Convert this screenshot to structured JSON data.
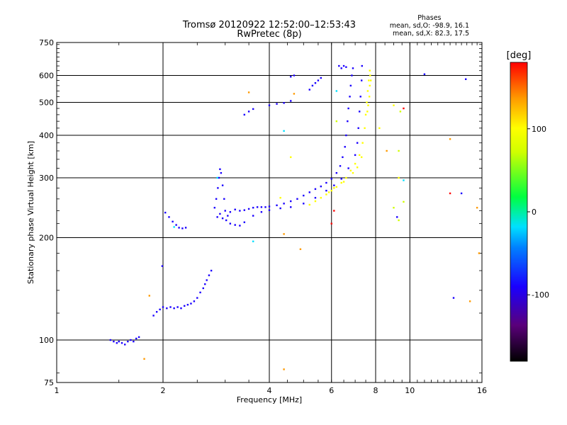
{
  "header": {
    "title_line1": "Tromsø 20120922 12:52:00–12:53:43",
    "title_line2": "RwPretec (8p)"
  },
  "phase_info": {
    "heading": "Phases",
    "line1": "mean, sd,O: -98.9, 16.1",
    "line2": "mean, sd,X: 82.3, 17.5"
  },
  "chart_data": {
    "type": "scatter",
    "title": "Tromsø 20120922 12:52:00–12:53:43",
    "subtitle": "RwPretec (8p)",
    "xlabel": "Frequency [MHz]",
    "ylabel": "Stationary phase Virtual Height [km]",
    "x_scale": "log",
    "y_scale": "log",
    "xlim": [
      1,
      16
    ],
    "ylim": [
      75,
      750
    ],
    "x_ticks": [
      1,
      2,
      4,
      6,
      8,
      10,
      16
    ],
    "y_ticks": [
      75,
      100,
      200,
      300,
      400,
      500,
      600,
      750
    ],
    "grid": true,
    "colorbar": {
      "label": "[deg]",
      "range": [
        -180,
        180
      ],
      "ticks": [
        100,
        0,
        -100
      ]
    },
    "series": [
      {
        "points": [
          [
            1.42,
            100
          ],
          [
            1.45,
            99
          ],
          [
            1.48,
            98
          ],
          [
            1.5,
            99
          ],
          [
            1.53,
            98
          ],
          [
            1.56,
            97
          ],
          [
            1.59,
            99
          ],
          [
            1.62,
            100
          ],
          [
            1.65,
            99
          ],
          [
            1.68,
            101
          ],
          [
            1.71,
            102
          ],
          [
            1.88,
            118
          ],
          [
            1.92,
            121
          ],
          [
            1.96,
            123
          ],
          [
            1.99,
            165
          ],
          [
            2.0,
            125
          ],
          [
            2.05,
            124
          ],
          [
            2.1,
            125
          ],
          [
            2.15,
            124
          ],
          [
            2.2,
            125
          ],
          [
            2.25,
            124
          ],
          [
            2.3,
            126
          ],
          [
            2.35,
            127
          ],
          [
            2.4,
            128
          ],
          [
            2.45,
            130
          ],
          [
            2.5,
            133
          ],
          [
            2.55,
            138
          ],
          [
            2.6,
            142
          ],
          [
            2.63,
            146
          ],
          [
            2.66,
            150
          ],
          [
            2.7,
            155
          ],
          [
            2.74,
            160
          ],
          [
            2.03,
            237
          ],
          [
            2.08,
            230
          ],
          [
            2.13,
            223
          ],
          [
            2.18,
            218
          ],
          [
            2.22,
            214
          ],
          [
            2.27,
            213
          ],
          [
            2.32,
            214
          ],
          [
            2.8,
            245
          ],
          [
            2.83,
            260
          ],
          [
            2.86,
            280
          ],
          [
            2.88,
            300
          ],
          [
            2.9,
            318
          ],
          [
            2.92,
            310
          ],
          [
            2.95,
            285
          ],
          [
            2.98,
            260
          ],
          [
            3.0,
            240
          ],
          [
            3.02,
            225
          ],
          [
            2.85,
            230
          ],
          [
            2.9,
            235
          ],
          [
            2.95,
            228
          ],
          [
            3.05,
            232
          ],
          [
            3.1,
            238
          ],
          [
            3.2,
            242
          ],
          [
            3.3,
            240
          ],
          [
            3.4,
            241
          ],
          [
            3.5,
            243
          ],
          [
            3.6,
            245
          ],
          [
            3.7,
            246
          ],
          [
            3.8,
            246
          ],
          [
            3.9,
            246
          ],
          [
            4.0,
            247
          ],
          [
            4.2,
            249
          ],
          [
            4.4,
            252
          ],
          [
            4.6,
            256
          ],
          [
            4.8,
            260
          ],
          [
            5.0,
            266
          ],
          [
            5.2,
            272
          ],
          [
            5.4,
            278
          ],
          [
            5.6,
            283
          ],
          [
            5.8,
            290
          ],
          [
            6.0,
            298
          ],
          [
            6.2,
            310
          ],
          [
            6.35,
            325
          ],
          [
            6.45,
            345
          ],
          [
            6.55,
            370
          ],
          [
            6.6,
            400
          ],
          [
            6.66,
            440
          ],
          [
            6.7,
            480
          ],
          [
            6.76,
            520
          ],
          [
            6.8,
            560
          ],
          [
            6.85,
            600
          ],
          [
            6.9,
            630
          ],
          [
            3.1,
            220
          ],
          [
            3.2,
            218
          ],
          [
            3.3,
            217
          ],
          [
            3.4,
            222
          ],
          [
            3.6,
            232
          ],
          [
            3.8,
            238
          ],
          [
            4.0,
            241
          ],
          [
            4.3,
            244
          ],
          [
            4.6,
            246
          ],
          [
            5.0,
            252
          ],
          [
            5.4,
            262
          ],
          [
            5.8,
            275
          ],
          [
            6.1,
            285
          ],
          [
            6.4,
            298
          ],
          [
            6.7,
            320
          ],
          [
            7.0,
            350
          ],
          [
            7.1,
            380
          ],
          [
            7.15,
            420
          ],
          [
            7.2,
            470
          ],
          [
            7.25,
            520
          ],
          [
            7.3,
            580
          ],
          [
            7.32,
            640
          ],
          [
            5.6,
            590
          ],
          [
            5.4,
            570
          ],
          [
            5.2,
            545
          ],
          [
            5.3,
            560
          ],
          [
            5.5,
            580
          ],
          [
            3.4,
            460
          ],
          [
            3.5,
            470
          ],
          [
            3.6,
            478
          ],
          [
            4.0,
            490
          ],
          [
            4.2,
            495
          ],
          [
            4.4,
            498
          ],
          [
            4.6,
            505
          ],
          [
            6.3,
            640
          ],
          [
            6.4,
            630
          ],
          [
            6.5,
            640
          ],
          [
            6.6,
            635
          ],
          [
            4.6,
            595
          ],
          [
            4.7,
            600
          ],
          [
            11.0,
            605
          ],
          [
            14.4,
            585
          ],
          [
            13.3,
            133
          ],
          [
            14.0,
            270
          ],
          [
            9.2,
            230
          ]
        ],
        "phase_deg": -100
      },
      {
        "points": [
          [
            5.6,
            262
          ],
          [
            5.8,
            268
          ],
          [
            6.0,
            275
          ],
          [
            6.2,
            282
          ],
          [
            6.4,
            290
          ],
          [
            6.6,
            300
          ],
          [
            6.8,
            315
          ],
          [
            7.0,
            330
          ],
          [
            7.2,
            350
          ],
          [
            7.35,
            380
          ],
          [
            7.45,
            420
          ],
          [
            7.5,
            460
          ],
          [
            7.55,
            500
          ],
          [
            7.6,
            540
          ],
          [
            7.65,
            580
          ],
          [
            7.7,
            620
          ],
          [
            7.3,
            345
          ],
          [
            7.1,
            322
          ],
          [
            6.9,
            310
          ],
          [
            6.5,
            292
          ],
          [
            6.1,
            280
          ],
          [
            5.9,
            272
          ],
          [
            7.75,
            580
          ],
          [
            7.7,
            560
          ],
          [
            7.72,
            600
          ],
          [
            7.68,
            520
          ],
          [
            7.62,
            490
          ],
          [
            7.58,
            470
          ],
          [
            5.4,
            256
          ],
          [
            5.2,
            250
          ],
          [
            4.3,
            262
          ],
          [
            4.6,
            345
          ],
          [
            9.0,
            490
          ],
          [
            9.3,
            300
          ],
          [
            8.2,
            420
          ]
        ],
        "phase_deg": 100
      },
      {
        "points": [
          [
            6.1,
            240
          ],
          [
            6.0,
            220
          ],
          [
            9.6,
            480
          ],
          [
            13.0,
            270
          ]
        ],
        "phase_deg": 170
      },
      {
        "points": [
          [
            1.83,
            135
          ],
          [
            1.77,
            88
          ],
          [
            4.4,
            82
          ],
          [
            4.9,
            185
          ],
          [
            13.0,
            390
          ],
          [
            15.5,
            245
          ],
          [
            15.7,
            180
          ],
          [
            14.8,
            130
          ],
          [
            4.7,
            530
          ],
          [
            8.6,
            360
          ],
          [
            4.4,
            205
          ],
          [
            3.5,
            535
          ]
        ],
        "phase_deg": 140
      },
      {
        "points": [
          [
            9.4,
            470
          ],
          [
            9.0,
            245
          ],
          [
            9.3,
            225
          ],
          [
            6.2,
            440
          ],
          [
            9.6,
            255
          ],
          [
            9.3,
            360
          ]
        ],
        "phase_deg": 40
      },
      {
        "points": [
          [
            2.15,
            215
          ],
          [
            2.85,
            300
          ],
          [
            3.6,
            195
          ],
          [
            4.4,
            412
          ],
          [
            6.2,
            540
          ],
          [
            9.6,
            295
          ]
        ],
        "phase_deg": -30
      }
    ]
  }
}
